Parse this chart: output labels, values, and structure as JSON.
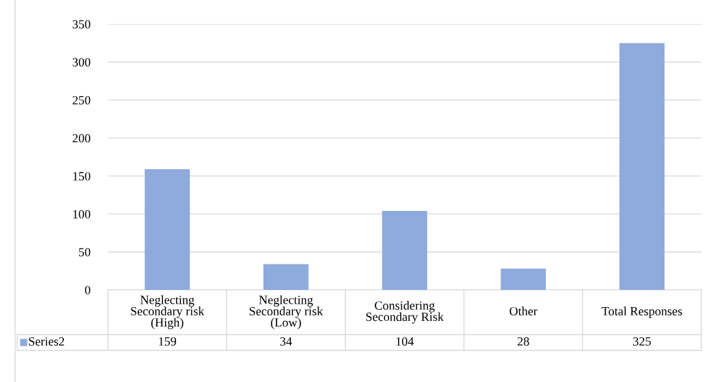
{
  "chart_data": {
    "type": "bar",
    "categories": [
      "Neglecting Secondary risk (High)",
      "Neglecting Secondary risk (Low)",
      "Considering Secondary Risk",
      "Other",
      "Total Responses"
    ],
    "series": [
      {
        "name": "Series2",
        "color": "#8faadc",
        "values": [
          159,
          34,
          104,
          28,
          325
        ]
      }
    ],
    "ylim": [
      0,
      350
    ],
    "yticks": [
      0,
      50,
      100,
      150,
      200,
      250,
      300,
      350
    ],
    "grid": "y",
    "legend": "bottom left",
    "data_labels": true
  }
}
